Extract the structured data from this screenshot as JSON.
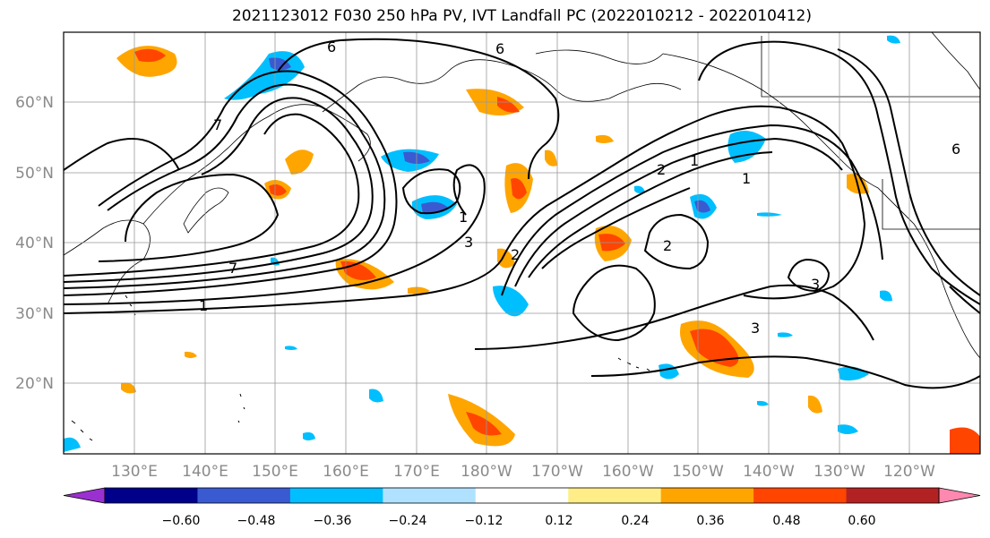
{
  "title": "2021123012 F030 250 hPa PV, IVT Landfall PC (2022010212 - 2022010412)",
  "lat_labels": [
    "60°N",
    "50°N",
    "40°N",
    "30°N",
    "20°N"
  ],
  "lon_labels": [
    "130°E",
    "140°E",
    "150°E",
    "160°E",
    "170°E",
    "180°W",
    "170°W",
    "160°W",
    "150°W",
    "140°W",
    "130°W",
    "120°W"
  ],
  "colorbar": {
    "colors": [
      "#9b30d0",
      "#00008b",
      "#3a5ad1",
      "#00bfff",
      "#b0e2ff",
      "#ffffff",
      "#ffee88",
      "#ffa500",
      "#ff4500",
      "#b22222",
      "#ff88b0"
    ],
    "tick_labels": [
      "−0.60",
      "−0.48",
      "−0.36",
      "−0.24",
      "−0.12",
      "0.12",
      "0.24",
      "0.36",
      "0.48",
      "0.60"
    ]
  },
  "contour_labels": [
    "6",
    "6",
    "7",
    "7",
    "1",
    "1",
    "3",
    "2",
    "2",
    "1",
    "3",
    "3",
    "2",
    "1",
    "6"
  ]
}
